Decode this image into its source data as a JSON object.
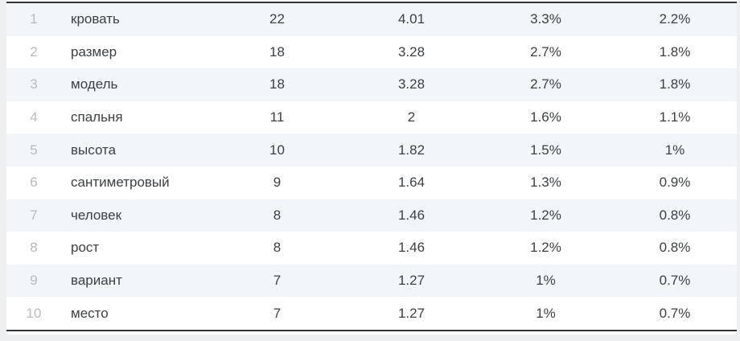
{
  "colors": {
    "page_bg": "#edeff1",
    "card_bg": "#ffffff",
    "stripe": "#f3f6f9",
    "text": "#3c4043",
    "rank": "#b6bbc0",
    "border": "#333333"
  },
  "table": {
    "rows": [
      {
        "rank": "1",
        "word": "кровать",
        "count": "22",
        "value": "4.01",
        "pct_a": "3.3%",
        "pct_b": "2.2%"
      },
      {
        "rank": "2",
        "word": "размер",
        "count": "18",
        "value": "3.28",
        "pct_a": "2.7%",
        "pct_b": "1.8%"
      },
      {
        "rank": "3",
        "word": "модель",
        "count": "18",
        "value": "3.28",
        "pct_a": "2.7%",
        "pct_b": "1.8%"
      },
      {
        "rank": "4",
        "word": "спальня",
        "count": "11",
        "value": "2",
        "pct_a": "1.6%",
        "pct_b": "1.1%"
      },
      {
        "rank": "5",
        "word": "высота",
        "count": "10",
        "value": "1.82",
        "pct_a": "1.5%",
        "pct_b": "1%"
      },
      {
        "rank": "6",
        "word": "сантиметровый",
        "count": "9",
        "value": "1.64",
        "pct_a": "1.3%",
        "pct_b": "0.9%"
      },
      {
        "rank": "7",
        "word": "человек",
        "count": "8",
        "value": "1.46",
        "pct_a": "1.2%",
        "pct_b": "0.8%"
      },
      {
        "rank": "8",
        "word": "рост",
        "count": "8",
        "value": "1.46",
        "pct_a": "1.2%",
        "pct_b": "0.8%"
      },
      {
        "rank": "9",
        "word": "вариант",
        "count": "7",
        "value": "1.27",
        "pct_a": "1%",
        "pct_b": "0.7%"
      },
      {
        "rank": "10",
        "word": "место",
        "count": "7",
        "value": "1.27",
        "pct_a": "1%",
        "pct_b": "0.7%"
      }
    ]
  }
}
